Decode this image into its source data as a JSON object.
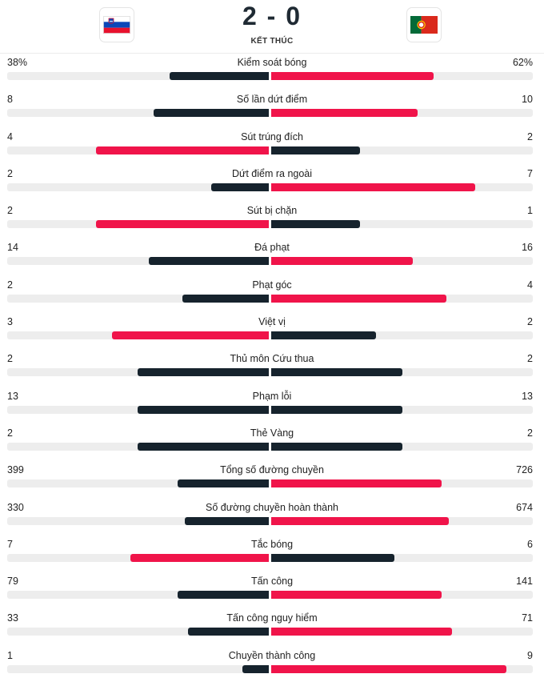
{
  "match": {
    "home_team": "Slovenia",
    "away_team": "Portugal",
    "score": "2 - 0",
    "status": "KẾT THÚC"
  },
  "colors": {
    "dark": "#16232d",
    "accent": "#f0144a",
    "track": "#ededed"
  },
  "stats": [
    {
      "label": "Kiểm soát bóng",
      "home": "38%",
      "away": "62%",
      "home_share": 0.38,
      "away_share": 0.62,
      "highlight": "away"
    },
    {
      "label": "Số lần dứt điểm",
      "home": "8",
      "away": "10",
      "home_share": 0.44,
      "away_share": 0.56,
      "highlight": "away"
    },
    {
      "label": "Sút trúng đích",
      "home": "4",
      "away": "2",
      "home_share": 0.66,
      "away_share": 0.34,
      "highlight": "home"
    },
    {
      "label": "Dứt điểm ra ngoài",
      "home": "2",
      "away": "7",
      "home_share": 0.22,
      "away_share": 0.78,
      "highlight": "away"
    },
    {
      "label": "Sút bị chặn",
      "home": "2",
      "away": "1",
      "home_share": 0.66,
      "away_share": 0.34,
      "highlight": "home"
    },
    {
      "label": "Đá phạt",
      "home": "14",
      "away": "16",
      "home_share": 0.46,
      "away_share": 0.54,
      "highlight": "away"
    },
    {
      "label": "Phạt góc",
      "home": "2",
      "away": "4",
      "home_share": 0.33,
      "away_share": 0.67,
      "highlight": "away"
    },
    {
      "label": "Việt vị",
      "home": "3",
      "away": "2",
      "home_share": 0.6,
      "away_share": 0.4,
      "highlight": "home"
    },
    {
      "label": "Thủ môn Cứu thua",
      "home": "2",
      "away": "2",
      "home_share": 0.5,
      "away_share": 0.5,
      "highlight": "none"
    },
    {
      "label": "Phạm lỗi",
      "home": "13",
      "away": "13",
      "home_share": 0.5,
      "away_share": 0.5,
      "highlight": "none"
    },
    {
      "label": "Thẻ Vàng",
      "home": "2",
      "away": "2",
      "home_share": 0.5,
      "away_share": 0.5,
      "highlight": "none"
    },
    {
      "label": "Tổng số đường chuyền",
      "home": "399",
      "away": "726",
      "home_share": 0.35,
      "away_share": 0.65,
      "highlight": "away"
    },
    {
      "label": "Số đường chuyền hoàn thành",
      "home": "330",
      "away": "674",
      "home_share": 0.32,
      "away_share": 0.68,
      "highlight": "away"
    },
    {
      "label": "Tắc bóng",
      "home": "7",
      "away": "6",
      "home_share": 0.53,
      "away_share": 0.47,
      "highlight": "home"
    },
    {
      "label": "Tấn công",
      "home": "79",
      "away": "141",
      "home_share": 0.35,
      "away_share": 0.65,
      "highlight": "away"
    },
    {
      "label": "Tấn công nguy hiểm",
      "home": "33",
      "away": "71",
      "home_share": 0.31,
      "away_share": 0.69,
      "highlight": "away"
    },
    {
      "label": "Chuyền thành công",
      "home": "1",
      "away": "9",
      "home_share": 0.1,
      "away_share": 0.9,
      "highlight": "away"
    }
  ]
}
